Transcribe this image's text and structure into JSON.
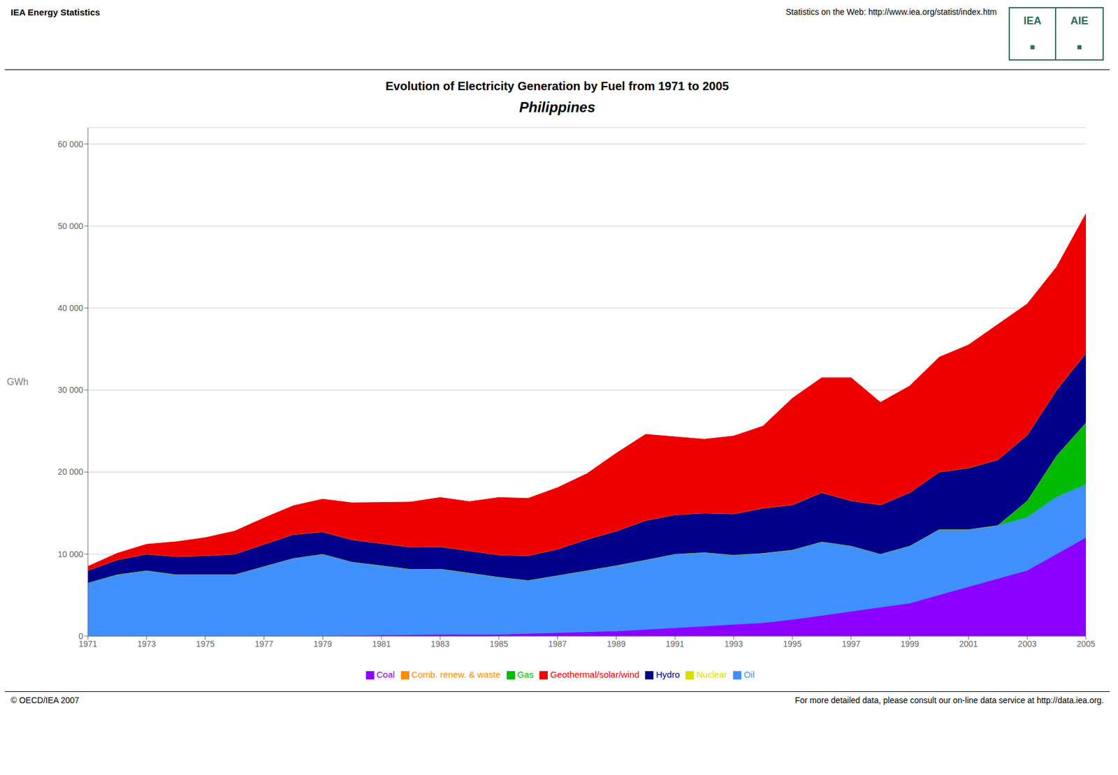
{
  "chart_data": {
    "type": "area",
    "stacked": true,
    "title": "Evolution of Electricity Generation by Fuel from 1971 to 2005",
    "subtitle": "Philippines",
    "y_label": "GWh",
    "annotations": [
      "IEA Energy Statistics",
      "Statistics on the Web: http://www.iea.org/statist/index.htm",
      "© OECD/IEA 2007",
      "For more detailed data, please consult our on-line data service at http://data.iea.org.",
      "IEA",
      "AIE",
      "■",
      "■"
    ],
    "x": [
      1971,
      1972,
      1973,
      1974,
      1975,
      1976,
      1977,
      1978,
      1979,
      1980,
      1981,
      1982,
      1983,
      1984,
      1985,
      1986,
      1987,
      1988,
      1989,
      1990,
      1991,
      1992,
      1993,
      1994,
      1995,
      1996,
      1997,
      1998,
      1999,
      2000,
      2001,
      2002,
      2003,
      2004,
      2005
    ],
    "series": [
      {
        "name": "Coal",
        "color": "#8B00FF",
        "values": [
          0,
          0,
          0,
          0,
          0,
          0,
          0,
          0,
          0,
          50,
          100,
          150,
          200,
          200,
          200,
          300,
          400,
          500,
          600,
          800,
          1000,
          1200,
          1400,
          1600,
          2000,
          2500,
          3000,
          3500,
          4000,
          5000,
          6000,
          7000,
          8000,
          10000,
          12000
        ]
      },
      {
        "name": "Oil",
        "color": "#4090FF",
        "values": [
          6500,
          7500,
          8000,
          7500,
          7500,
          7500,
          8500,
          9500,
          10000,
          9000,
          8500,
          8000,
          8000,
          7500,
          7000,
          6500,
          7000,
          7500,
          8000,
          8500,
          9000,
          9000,
          8500,
          8500,
          8500,
          9000,
          8000,
          6500,
          7000,
          8000,
          7000,
          6500,
          6500,
          7000,
          6500
        ]
      },
      {
        "name": "Gas",
        "color": "#00BB00",
        "values": [
          0,
          0,
          0,
          0,
          0,
          0,
          0,
          0,
          0,
          0,
          0,
          0,
          0,
          0,
          0,
          0,
          0,
          0,
          0,
          0,
          0,
          0,
          0,
          0,
          0,
          0,
          0,
          0,
          0,
          0,
          0,
          0,
          2000,
          5000,
          7500
        ]
      },
      {
        "name": "Nuclear",
        "color": "#DDDD00",
        "values": [
          0,
          0,
          0,
          0,
          0,
          0,
          0,
          0,
          0,
          0,
          0,
          0,
          0,
          0,
          0,
          0,
          0,
          0,
          0,
          0,
          0,
          0,
          0,
          0,
          0,
          0,
          0,
          0,
          0,
          0,
          0,
          0,
          0,
          0,
          0
        ]
      },
      {
        "name": "Hydro",
        "color": "#00008B",
        "values": [
          1500,
          1800,
          2000,
          2200,
          2300,
          2500,
          2700,
          2900,
          2700,
          2700,
          2700,
          2700,
          2700,
          2700,
          2700,
          3000,
          3200,
          3800,
          4200,
          4800,
          4800,
          4800,
          5000,
          5500,
          5500,
          6000,
          5500,
          6000,
          6500,
          7000,
          7500,
          8000,
          8000,
          8000,
          8500
        ]
      },
      {
        "name": "Comb. renew. & waste",
        "color": "#FF8C00",
        "values": [
          0,
          0,
          0,
          0,
          0,
          0,
          0,
          0,
          0,
          0,
          0,
          0,
          0,
          0,
          0,
          0,
          0,
          0,
          0,
          0,
          0,
          0,
          0,
          0,
          0,
          0,
          0,
          0,
          0,
          0,
          0,
          0,
          0,
          0,
          0
        ]
      },
      {
        "name": "Geothermal/solar/wind",
        "color": "#EE0000",
        "values": [
          500,
          800,
          1200,
          1800,
          2200,
          2800,
          3200,
          3500,
          4000,
          4500,
          5000,
          5500,
          6000,
          6000,
          7000,
          7000,
          7500,
          8000,
          9500,
          10500,
          9500,
          9000,
          9500,
          10000,
          13000,
          14000,
          15000,
          12500,
          13000,
          14000,
          15000,
          16500,
          16000,
          15000,
          17000
        ]
      }
    ],
    "xlim": [
      1971,
      2005
    ],
    "xticks": [
      1971,
      1973,
      1975,
      1977,
      1979,
      1981,
      1983,
      1985,
      1987,
      1989,
      1991,
      1993,
      1995,
      1997,
      1999,
      2001,
      2003,
      2005
    ],
    "ylim": [
      0,
      62000
    ],
    "yticks": [
      0,
      {
        "value": 10000,
        "label": "10 000"
      },
      {
        "value": 20000,
        "label": "20 000"
      },
      {
        "value": 30000,
        "label": "30 000"
      },
      {
        "value": 40000,
        "label": "40 000"
      },
      {
        "value": 50000,
        "label": "50 000"
      },
      {
        "value": 60000,
        "label": "60 000"
      }
    ],
    "grid": "y",
    "legend": "bottom"
  }
}
